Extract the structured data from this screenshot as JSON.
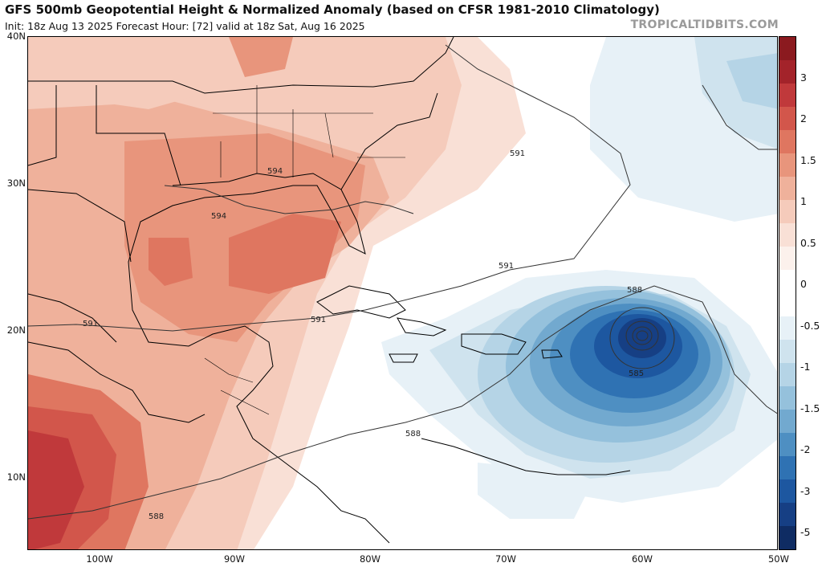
{
  "header": {
    "title": "GFS 500mb Geopotential Height & Normalized Anomaly (based on CFSR 1981-2010 Climatology)",
    "subtitle": "Init: 18z Aug 13 2025   Forecast Hour: [72]   valid at 18z Sat, Aug 16 2025",
    "site": "TROPICALTIDBITS.COM"
  },
  "map": {
    "lat_labels": [
      "40N",
      "30N",
      "20N",
      "10N"
    ],
    "lon_labels": [
      "100W",
      "90W",
      "80W",
      "70W",
      "60W",
      "50W"
    ],
    "contour_labels": [
      "591",
      "594",
      "594",
      "591",
      "591",
      "591",
      "588",
      "585",
      "588",
      "588"
    ],
    "storm_center": {
      "lat": 19.7,
      "lon": -60.0
    }
  },
  "colorbar": {
    "labels": [
      "3",
      "2",
      "1.5",
      "1",
      "0.5",
      "0",
      "-0.5",
      "-1",
      "-1.5",
      "-2",
      "-3",
      "-5"
    ],
    "colors": [
      "#8b1a1f",
      "#a3232a",
      "#c0393b",
      "#d2564b",
      "#df7660",
      "#e8957c",
      "#efb19b",
      "#f5cbbb",
      "#f9e0d6",
      "#fcf1ec",
      "#ffffff",
      "#ffffff",
      "#e7f1f7",
      "#cfe3ee",
      "#b5d4e6",
      "#95c1dc",
      "#72a9cf",
      "#4e8fc2",
      "#2f72b3",
      "#1d57a0",
      "#163f84",
      "#0f2c63"
    ]
  }
}
